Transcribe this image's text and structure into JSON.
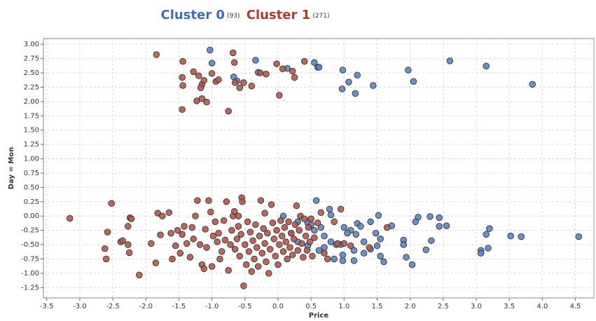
{
  "chart_data": {
    "type": "scatter",
    "x_label": "Price",
    "y_label": "Day = Mon",
    "xlim": [
      -3.55,
      4.78
    ],
    "ylim": [
      -1.43,
      3.1
    ],
    "grid": true,
    "xticks": [
      -3.5,
      {
        "value": -3,
        "label": "-3.0"
      },
      -2.5,
      {
        "value": -2,
        "label": "-2.0"
      },
      -1.5,
      {
        "value": -1,
        "label": "-1.0"
      },
      -0.5,
      {
        "value": 0,
        "label": "0.0"
      },
      0.5,
      {
        "value": 1,
        "label": "1.0"
      },
      1.5,
      {
        "value": 2,
        "label": "2.0"
      },
      2.5,
      {
        "value": 3,
        "label": "3.0"
      },
      3.5,
      {
        "value": 4,
        "label": "4.0"
      },
      4.5
    ],
    "yticks": [
      {
        "value": 3,
        "label": "3.00"
      },
      {
        "value": 2.75,
        "label": "2.75"
      },
      {
        "value": 2.5,
        "label": "2.50"
      },
      {
        "value": 2.25,
        "label": "2.25"
      },
      {
        "value": 2,
        "label": "2.00"
      },
      {
        "value": 1.75,
        "label": "1.75"
      },
      {
        "value": 1.5,
        "label": "1.50"
      },
      {
        "value": 1.25,
        "label": "1.25"
      },
      {
        "value": 1,
        "label": "1.00"
      },
      {
        "value": 0.75,
        "label": "0.75"
      },
      {
        "value": 0.5,
        "label": "0.50"
      },
      {
        "value": 0.25,
        "label": "0.25"
      },
      {
        "value": 0,
        "label": "0.00"
      },
      {
        "value": -0.25,
        "label": "-0.25"
      },
      {
        "value": -0.5,
        "label": "-0.50"
      },
      {
        "value": -0.75,
        "label": "-0.75"
      },
      {
        "value": -1,
        "label": "-1.00"
      },
      {
        "value": -1.25,
        "label": "-1.25"
      }
    ],
    "series": [
      {
        "name": "Cluster 0",
        "count_label": "(93)",
        "color": "#5b84c4",
        "title_color": "#3d6eb4",
        "x": [
          -1.03,
          -1.0,
          -0.67,
          -0.62,
          -0.34,
          -0.3,
          0.14,
          0.55,
          0.6,
          0.62,
          0.98,
          0.97,
          1.07,
          1.2,
          1.17,
          1.44,
          1.97,
          2.05,
          2.6,
          3.15,
          3.85,
          0.08,
          0.58,
          0.78,
          0.8,
          1.52,
          2.12,
          2.3,
          2.44,
          2.08,
          2.44,
          2.55,
          3.2,
          3.15,
          3.52,
          3.68,
          4.55,
          3.07,
          3.07,
          3.18,
          2.32,
          2.24,
          1.9,
          1.9,
          1.94,
          2.03,
          1.6,
          1.55,
          1.5,
          1.55,
          1.48,
          1.72,
          1.2,
          1.25,
          1.1,
          1.0,
          0.95,
          0.98,
          0.98,
          1.15,
          1.15,
          1.3,
          1.3,
          1.4,
          0.88,
          0.7,
          0.8,
          0.7,
          0.62,
          0.55,
          0.45,
          0.3,
          0.3,
          0.45,
          0.2,
          0.5,
          0.65,
          1.05,
          1.4,
          1.18,
          0.85
        ],
        "y": [
          2.9,
          2.67,
          2.43,
          2.36,
          2.72,
          2.51,
          2.58,
          2.68,
          2.6,
          2.6,
          2.55,
          2.22,
          2.34,
          2.46,
          2.14,
          2.28,
          2.55,
          2.35,
          2.71,
          2.62,
          2.3,
          0,
          0.27,
          0.12,
          0.02,
          0.01,
          -0.02,
          -0.01,
          -0.03,
          -0.1,
          -0.18,
          -0.17,
          -0.22,
          -0.32,
          -0.35,
          -0.36,
          -0.36,
          -0.6,
          -0.65,
          -0.56,
          -0.43,
          -0.59,
          -0.42,
          -0.5,
          -0.72,
          -0.85,
          -0.8,
          -0.7,
          -0.52,
          -0.4,
          -0.3,
          -0.17,
          -0.13,
          -0.18,
          -0.25,
          -0.2,
          -0.5,
          -0.68,
          -0.78,
          -0.78,
          -0.6,
          -0.45,
          -0.65,
          -0.58,
          -0.5,
          -0.35,
          -0.45,
          -0.55,
          -0.6,
          -0.25,
          -0.12,
          -0.1,
          -0.45,
          -0.52,
          -0.3,
          -0.15,
          -0.2,
          -0.3,
          -0.1,
          -0.32,
          -0.75
        ]
      },
      {
        "name": "Cluster 1",
        "count_label": "(271)",
        "color": "#b5574a",
        "title_color": "#b0392c",
        "x": [
          -1.84,
          -1.44,
          -1.45,
          -1.44,
          -1.28,
          -1.2,
          -1.15,
          -1.12,
          -1.17,
          -1.0,
          -0.94,
          -0.9,
          -0.68,
          -0.66,
          -0.65,
          -0.58,
          -0.52,
          -0.4,
          -0.27,
          -0.18,
          -0.02,
          0.07,
          0.22,
          0.25,
          0.4,
          -1.23,
          -1.15,
          -1.08,
          -1.45,
          -0.75,
          0.02,
          -3.15,
          -2.52,
          -2.62,
          -2.6,
          -2.58,
          -2.38,
          -2.35,
          -2.27,
          -2.25,
          -2.24,
          -2.22,
          -2.27,
          -2.1,
          -1.92,
          -1.82,
          -1.75,
          -1.78,
          -1.85,
          -1.65,
          -1.62,
          -1.55,
          -1.52,
          -1.48,
          -1.45,
          -1.42,
          -1.38,
          -1.33,
          -1.3,
          -1.28,
          -1.25,
          -1.22,
          -1.18,
          -1.15,
          -1.12,
          -1.1,
          -1.08,
          -1.05,
          -1.02,
          -1.0,
          -0.98,
          -0.95,
          -0.92,
          -0.9,
          -0.88,
          -0.85,
          -0.82,
          -0.8,
          -0.78,
          -0.75,
          -0.72,
          -0.7,
          -0.68,
          -0.66,
          -0.65,
          -0.62,
          -0.6,
          -0.58,
          -0.56,
          -0.55,
          -0.54,
          -0.52,
          -0.5,
          -0.48,
          -0.46,
          -0.44,
          -0.42,
          -0.4,
          -0.38,
          -0.36,
          -0.34,
          -0.32,
          -0.3,
          -0.28,
          -0.26,
          -0.24,
          -0.22,
          -0.2,
          -0.18,
          -0.16,
          -0.14,
          -0.12,
          -0.1,
          -0.08,
          -0.06,
          -0.04,
          -0.02,
          0.0,
          0.02,
          0.04,
          0.06,
          0.08,
          0.1,
          0.12,
          0.14,
          0.16,
          0.18,
          0.2,
          0.22,
          0.24,
          0.26,
          0.28,
          0.3,
          0.32,
          0.34,
          0.36,
          0.38,
          0.4,
          0.42,
          0.44,
          0.46,
          0.48,
          0.5,
          0.52,
          0.55,
          0.6,
          0.65,
          0.7,
          0.75,
          0.9,
          0.95,
          1.0,
          1.1,
          1.65,
          1.38,
          0.85,
          -0.2,
          -0.6,
          -1.6
        ],
        "y": [
          2.82,
          2.7,
          2.42,
          2.28,
          2.52,
          2.45,
          2.3,
          2.37,
          2.24,
          2.49,
          2.35,
          2.38,
          2.85,
          2.68,
          2.33,
          2.24,
          2.33,
          2.27,
          2.5,
          2.48,
          2.66,
          2.57,
          2.53,
          2.42,
          2.7,
          2.01,
          2.05,
          1.99,
          1.86,
          1.83,
          2.11,
          -0.04,
          0.22,
          -0.57,
          -0.75,
          -0.28,
          -0.45,
          -0.43,
          -0.5,
          -0.64,
          -0.03,
          -0.05,
          -0.18,
          -1.03,
          -0.48,
          0.05,
          0.0,
          -0.33,
          -0.82,
          0.06,
          -0.3,
          -0.52,
          -0.25,
          -0.65,
          -0.32,
          -0.18,
          -0.48,
          -0.72,
          -0.2,
          -0.4,
          0.0,
          0.27,
          -0.5,
          -0.85,
          -0.92,
          -0.23,
          -0.55,
          0.27,
          0.07,
          -0.88,
          -0.35,
          -0.1,
          -0.45,
          -0.3,
          -0.75,
          -0.62,
          -0.08,
          -0.42,
          0.25,
          -0.95,
          -0.5,
          -0.25,
          0.0,
          0.08,
          -0.58,
          -0.4,
          -0.18,
          -0.7,
          -0.32,
          0.32,
          0.25,
          -1.22,
          -0.5,
          -0.85,
          -0.1,
          -0.62,
          -0.28,
          -0.97,
          -0.43,
          -0.75,
          -0.15,
          -0.55,
          -0.88,
          -0.35,
          0.27,
          -0.65,
          -0.22,
          -0.48,
          -0.8,
          -0.3,
          -1.0,
          -0.58,
          0.2,
          -0.12,
          -0.4,
          -0.7,
          -0.25,
          -0.85,
          -0.5,
          -0.08,
          -0.35,
          -0.62,
          -0.2,
          -0.45,
          -0.75,
          -0.1,
          -0.55,
          -0.3,
          -0.68,
          -0.4,
          -0.15,
          0.18,
          -0.6,
          -0.25,
          0.0,
          -0.48,
          -0.72,
          -0.05,
          -0.35,
          -0.6,
          -0.2,
          -0.45,
          -0.05,
          -0.7,
          -0.38,
          -0.12,
          0.06,
          -0.65,
          -0.75,
          -0.48,
          0.12,
          -0.48,
          -0.52,
          -0.2,
          -0.55,
          -0.1,
          0.05,
          0.0,
          -0.75
        ]
      }
    ]
  }
}
